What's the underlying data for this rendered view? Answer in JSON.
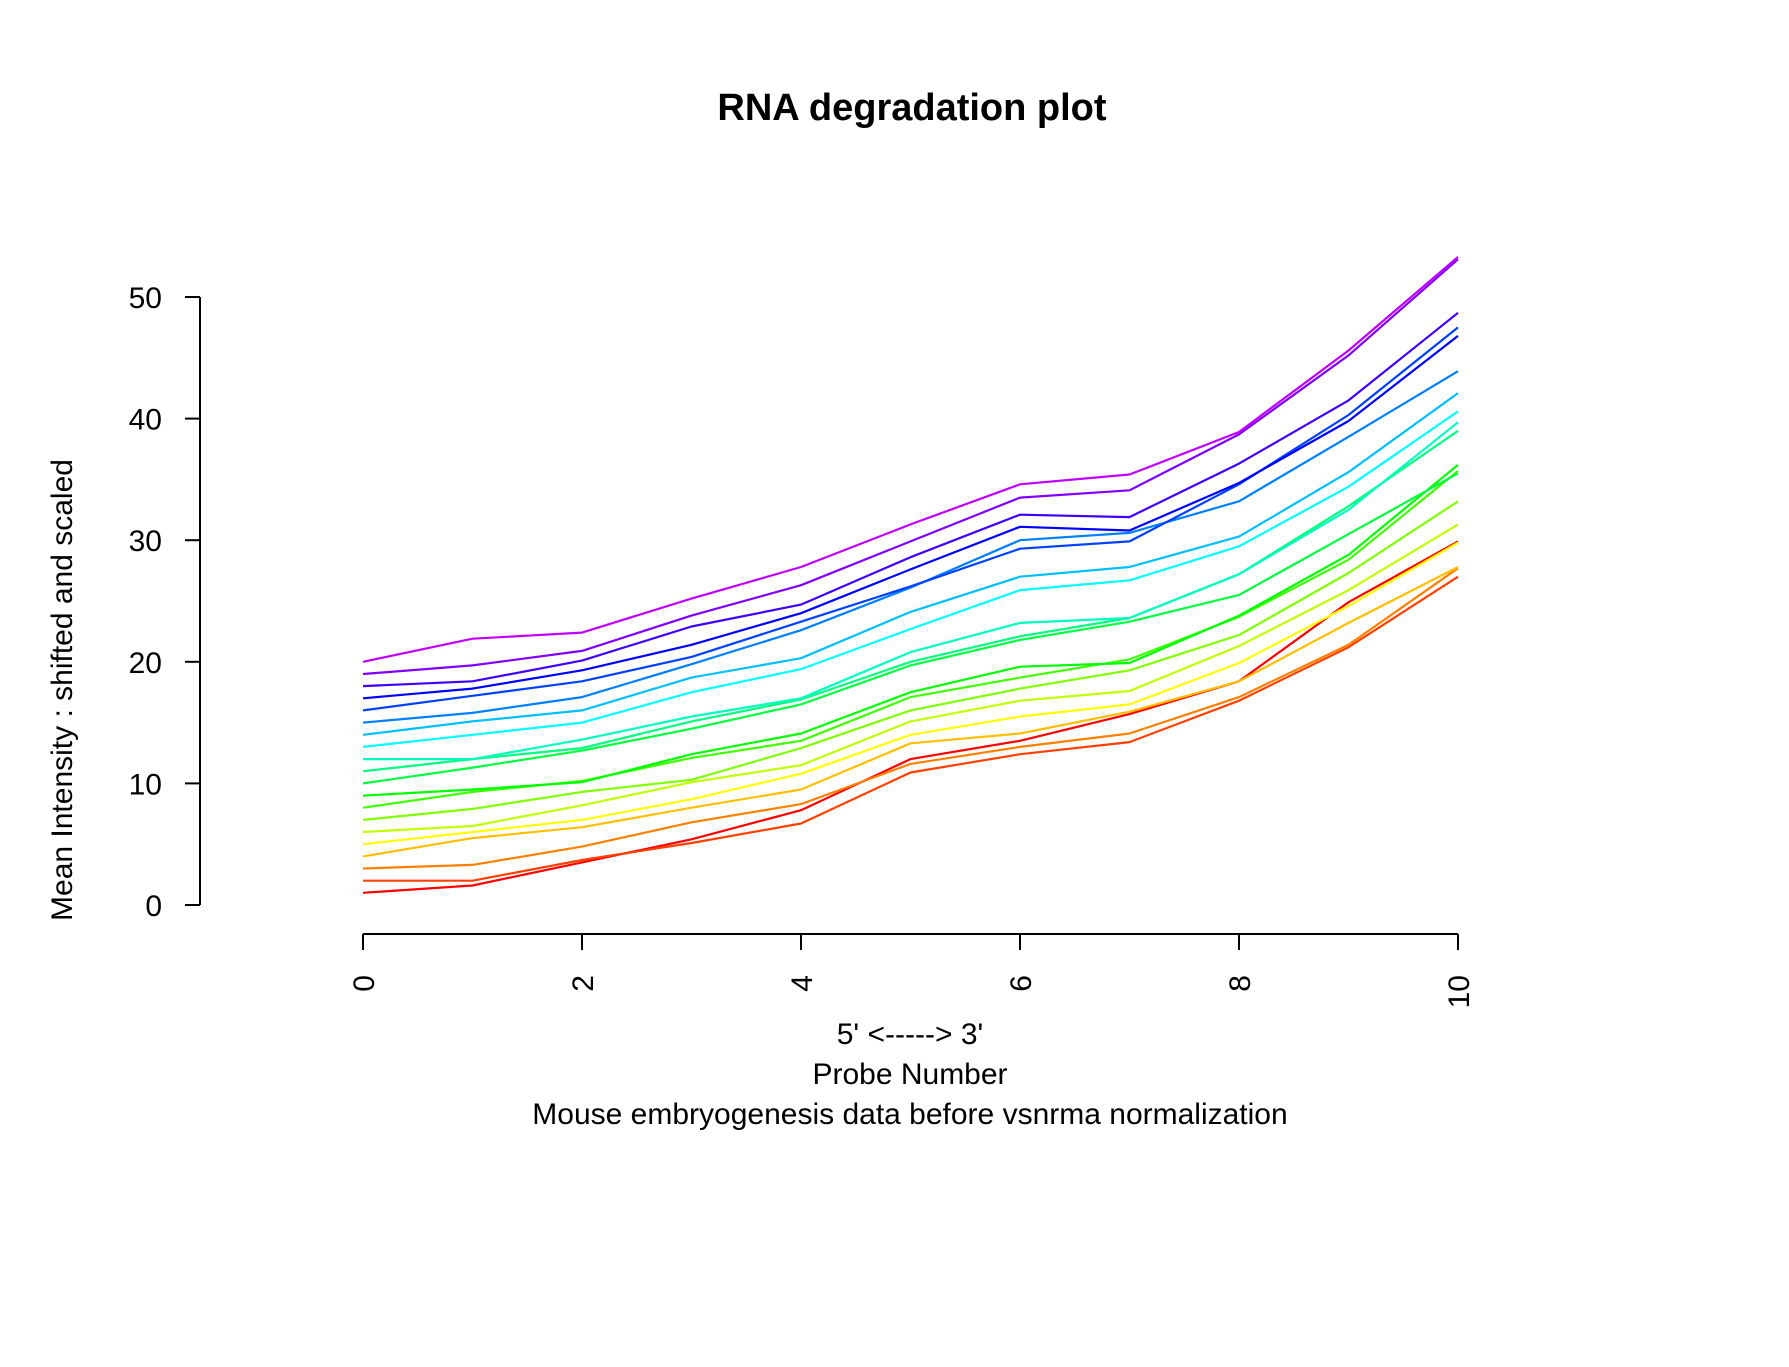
{
  "chart_data": {
    "type": "line",
    "title": "RNA degradation plot",
    "xlabel_lines": [
      "5' <-----> 3'",
      "Probe Number",
      "Mouse embryogenesis data before vsnrma normalization"
    ],
    "ylabel": "Mean Intensity : shifted and scaled",
    "xlim": [
      0,
      10
    ],
    "ylim": [
      0,
      55
    ],
    "x_ticks": [
      "0",
      "2",
      "4",
      "6",
      "8",
      "10"
    ],
    "y_ticks": [
      "0",
      "10",
      "20",
      "30",
      "40",
      "50"
    ],
    "grid": false,
    "legend": "none",
    "x": [
      0,
      1,
      2,
      3,
      4,
      5,
      6,
      7,
      8,
      9,
      10
    ],
    "series": [
      {
        "color": "#ff0000",
        "values": [
          1.0,
          1.6,
          3.5,
          5.4,
          7.8,
          12.0,
          13.5,
          15.7,
          18.4,
          24.9,
          29.9
        ]
      },
      {
        "color": "#ff4000",
        "values": [
          2.0,
          2.0,
          3.7,
          5.1,
          6.7,
          10.9,
          12.4,
          13.4,
          16.8,
          21.2,
          27.0
        ]
      },
      {
        "color": "#ff8000",
        "values": [
          3.0,
          3.3,
          4.8,
          6.8,
          8.3,
          11.6,
          13.0,
          14.1,
          17.1,
          21.4,
          27.7
        ]
      },
      {
        "color": "#ffbf00",
        "values": [
          4.0,
          5.5,
          6.4,
          8.0,
          9.5,
          13.3,
          14.1,
          15.9,
          18.4,
          23.2,
          27.8
        ]
      },
      {
        "color": "#ffff00",
        "values": [
          5.0,
          6.0,
          7.0,
          8.7,
          10.8,
          14.0,
          15.5,
          16.5,
          19.9,
          24.6,
          29.8
        ]
      },
      {
        "color": "#bfff00",
        "values": [
          6.0,
          6.5,
          8.2,
          10.1,
          11.5,
          15.1,
          16.8,
          17.6,
          21.3,
          25.9,
          31.3
        ]
      },
      {
        "color": "#80ff00",
        "values": [
          7.0,
          7.9,
          9.3,
          10.3,
          12.9,
          16.0,
          17.8,
          19.3,
          22.2,
          27.3,
          33.2
        ]
      },
      {
        "color": "#40ff00",
        "values": [
          8.0,
          9.3,
          10.2,
          12.1,
          13.5,
          17.1,
          18.7,
          20.2,
          23.7,
          28.4,
          35.7
        ]
      },
      {
        "color": "#00ff00",
        "values": [
          9.0,
          9.5,
          10.1,
          12.4,
          14.1,
          17.5,
          19.6,
          19.9,
          23.8,
          28.8,
          36.2
        ]
      },
      {
        "color": "#00ff40",
        "values": [
          10.0,
          11.3,
          12.7,
          14.5,
          16.5,
          19.7,
          21.8,
          23.3,
          25.5,
          30.5,
          35.5
        ]
      },
      {
        "color": "#00ff80",
        "values": [
          11.0,
          12.0,
          12.9,
          15.1,
          16.9,
          20.0,
          22.1,
          23.6,
          27.2,
          32.8,
          39.0
        ]
      },
      {
        "color": "#00ffbf",
        "values": [
          12.0,
          12.0,
          13.6,
          15.5,
          17.0,
          20.8,
          23.2,
          23.6,
          27.2,
          32.5,
          39.7
        ]
      },
      {
        "color": "#00ffff",
        "values": [
          13.0,
          14.0,
          15.0,
          17.5,
          19.4,
          22.7,
          25.9,
          26.7,
          29.5,
          34.4,
          40.6
        ]
      },
      {
        "color": "#00bfff",
        "values": [
          14.0,
          15.1,
          16.0,
          18.7,
          20.3,
          24.1,
          27.0,
          27.8,
          30.3,
          35.6,
          42.1
        ]
      },
      {
        "color": "#0080ff",
        "values": [
          15.0,
          15.8,
          17.1,
          19.8,
          22.6,
          26.1,
          30.0,
          30.6,
          33.2,
          38.5,
          43.9
        ]
      },
      {
        "color": "#0040ff",
        "values": [
          16.0,
          17.2,
          18.4,
          20.4,
          23.3,
          26.2,
          29.3,
          29.9,
          34.6,
          40.3,
          47.5
        ]
      },
      {
        "color": "#0000ff",
        "values": [
          17.0,
          17.8,
          19.3,
          21.4,
          24.0,
          27.6,
          31.1,
          30.8,
          34.7,
          39.8,
          46.8
        ]
      },
      {
        "color": "#4000ff",
        "values": [
          18.0,
          18.4,
          20.1,
          22.9,
          24.7,
          28.6,
          32.1,
          31.9,
          36.3,
          41.5,
          48.7
        ]
      },
      {
        "color": "#8000ff",
        "values": [
          19.0,
          19.7,
          20.9,
          23.8,
          26.3,
          29.9,
          33.5,
          34.1,
          38.7,
          45.2,
          53.1
        ]
      },
      {
        "color": "#bf00ff",
        "values": [
          20.0,
          21.9,
          22.4,
          25.2,
          27.8,
          31.3,
          34.6,
          35.4,
          38.9,
          45.6,
          53.3
        ]
      }
    ],
    "series_color_order_note": ""
  }
}
